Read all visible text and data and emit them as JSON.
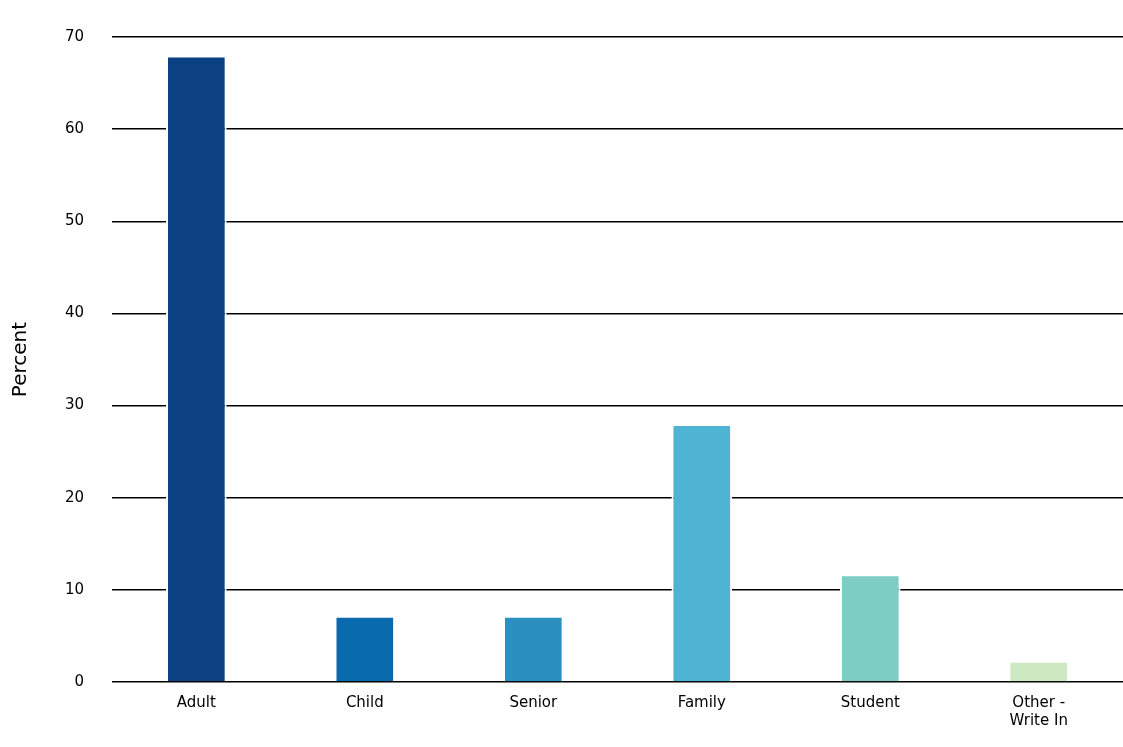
{
  "chart_data": {
    "type": "bar",
    "ylabel": "Percent",
    "categories": [
      "Adult",
      "Child",
      "Senior",
      "Family",
      "Student",
      "Other - Write In"
    ],
    "values": [
      68,
      7.2,
      7.2,
      28,
      11.7,
      2.3
    ],
    "colors": [
      "#0b4082",
      "#096aad",
      "#2b8fbf",
      "#4fb3d4",
      "#7dcdc4",
      "#cce9c2"
    ],
    "ylim": [
      0,
      70
    ],
    "yticks": [
      0,
      10,
      20,
      30,
      40,
      50,
      60,
      70
    ],
    "grid": "y",
    "legend": false
  }
}
